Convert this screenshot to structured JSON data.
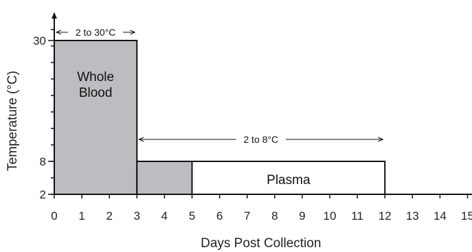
{
  "chart_data": {
    "type": "area",
    "title": "",
    "xlabel": "Days Post Collection",
    "ylabel": "Temperature (°C)",
    "x_ticks": [
      0,
      1,
      2,
      3,
      4,
      5,
      6,
      7,
      8,
      9,
      10,
      11,
      12,
      13,
      14,
      15
    ],
    "x_tick_labels": [
      "0",
      "1",
      "2",
      "3",
      "4",
      "5",
      "6",
      "7",
      "8",
      "9",
      "10",
      "11",
      "12",
      "13",
      "14",
      "15"
    ],
    "y_ticks": [
      2,
      8,
      30
    ],
    "y_tick_labels": [
      "2",
      "8",
      "30"
    ],
    "xlim": [
      0,
      15
    ],
    "ylim": [
      2,
      32.5
    ],
    "grid": false,
    "regions": [
      {
        "name": "Whole Blood",
        "label_lines": [
          "Whole",
          "Blood"
        ],
        "fill": "#bcbdc0",
        "steps": [
          {
            "x": [
              0,
              3
            ],
            "y": [
              2,
              30
            ]
          },
          {
            "x": [
              3,
              5
            ],
            "y": [
              2,
              8
            ]
          }
        ]
      },
      {
        "name": "Plasma",
        "label_lines": [
          "Plasma"
        ],
        "fill": "#ffffff",
        "steps": [
          {
            "x": [
              5,
              12
            ],
            "y": [
              2,
              8
            ]
          }
        ]
      }
    ],
    "annotations": [
      {
        "text": "2 to 30°C",
        "x_range": [
          0,
          3
        ],
        "y": 31.5
      },
      {
        "text": "2 to 8°C",
        "x_range": [
          3,
          12
        ],
        "y": 12
      }
    ]
  }
}
